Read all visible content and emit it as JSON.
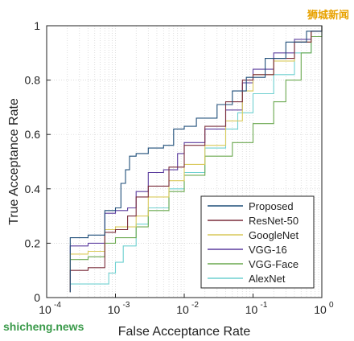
{
  "watermark_top": "狮城新闻",
  "watermark_bottom": "shicheng.news",
  "colors": {
    "Proposed": "#1f4e79",
    "ResNet-50": "#7a2c3a",
    "GoogleNet": "#d9c95a",
    "VGG-16": "#5b3c9e",
    "VGG-Face": "#6aa84f",
    "AlexNet": "#6fd0d0"
  },
  "chart_data": {
    "type": "line",
    "xlabel": "False Acceptance Rate",
    "ylabel": "True Acceptance Rate",
    "xscale": "log",
    "xlim": [
      0.0001,
      1
    ],
    "ylim": [
      0,
      1
    ],
    "x_ticks": [
      0.0001,
      0.001,
      0.01,
      0.1,
      1
    ],
    "x_tick_labels": [
      "10",
      "10",
      "10",
      "10",
      "10"
    ],
    "x_tick_exponents": [
      "-4",
      "-3",
      "-2",
      "-1",
      "0"
    ],
    "y_ticks": [
      0,
      0.2,
      0.4,
      0.6,
      0.8,
      1
    ],
    "y_tick_labels": [
      "0",
      "0.2",
      "0.4",
      "0.6",
      "0.8",
      "1"
    ],
    "grid": true,
    "legend_position": "bottom-right",
    "series": [
      {
        "name": "Proposed",
        "points": [
          [
            0.00022,
            0.02
          ],
          [
            0.00022,
            0.22
          ],
          [
            0.0004,
            0.23
          ],
          [
            0.0007,
            0.24
          ],
          [
            0.0007,
            0.32
          ],
          [
            0.001,
            0.33
          ],
          [
            0.0012,
            0.42
          ],
          [
            0.0014,
            0.47
          ],
          [
            0.0016,
            0.52
          ],
          [
            0.002,
            0.53
          ],
          [
            0.003,
            0.55
          ],
          [
            0.005,
            0.56
          ],
          [
            0.007,
            0.62
          ],
          [
            0.01,
            0.63
          ],
          [
            0.015,
            0.66
          ],
          [
            0.03,
            0.71
          ],
          [
            0.05,
            0.76
          ],
          [
            0.08,
            0.81
          ],
          [
            0.15,
            0.88
          ],
          [
            0.3,
            0.94
          ],
          [
            0.6,
            0.98
          ],
          [
            1,
            1
          ]
        ]
      },
      {
        "name": "ResNet-50",
        "points": [
          [
            0.00022,
            0.02
          ],
          [
            0.00022,
            0.1
          ],
          [
            0.0004,
            0.11
          ],
          [
            0.0007,
            0.13
          ],
          [
            0.0007,
            0.24
          ],
          [
            0.001,
            0.25
          ],
          [
            0.0015,
            0.3
          ],
          [
            0.002,
            0.37
          ],
          [
            0.003,
            0.41
          ],
          [
            0.006,
            0.48
          ],
          [
            0.01,
            0.56
          ],
          [
            0.02,
            0.63
          ],
          [
            0.04,
            0.72
          ],
          [
            0.07,
            0.8
          ],
          [
            0.1,
            0.82
          ],
          [
            0.2,
            0.88
          ],
          [
            0.4,
            0.94
          ],
          [
            0.7,
            0.98
          ],
          [
            1,
            1
          ]
        ]
      },
      {
        "name": "GoogleNet",
        "points": [
          [
            0.00022,
            0.02
          ],
          [
            0.00022,
            0.16
          ],
          [
            0.0004,
            0.17
          ],
          [
            0.0007,
            0.19
          ],
          [
            0.0007,
            0.25
          ],
          [
            0.001,
            0.26
          ],
          [
            0.002,
            0.3
          ],
          [
            0.003,
            0.37
          ],
          [
            0.006,
            0.43
          ],
          [
            0.01,
            0.49
          ],
          [
            0.02,
            0.56
          ],
          [
            0.04,
            0.65
          ],
          [
            0.07,
            0.76
          ],
          [
            0.1,
            0.82
          ],
          [
            0.2,
            0.87
          ],
          [
            0.4,
            0.94
          ],
          [
            0.7,
            0.98
          ],
          [
            1,
            1
          ]
        ]
      },
      {
        "name": "VGG-16",
        "points": [
          [
            0.00022,
            0.02
          ],
          [
            0.00022,
            0.19
          ],
          [
            0.0004,
            0.2
          ],
          [
            0.0007,
            0.22
          ],
          [
            0.0007,
            0.31
          ],
          [
            0.001,
            0.32
          ],
          [
            0.0015,
            0.33
          ],
          [
            0.002,
            0.39
          ],
          [
            0.003,
            0.46
          ],
          [
            0.005,
            0.47
          ],
          [
            0.008,
            0.53
          ],
          [
            0.01,
            0.57
          ],
          [
            0.02,
            0.62
          ],
          [
            0.04,
            0.69
          ],
          [
            0.07,
            0.79
          ],
          [
            0.1,
            0.84
          ],
          [
            0.2,
            0.9
          ],
          [
            0.4,
            0.95
          ],
          [
            0.7,
            0.98
          ],
          [
            1,
            1
          ]
        ]
      },
      {
        "name": "VGG-Face",
        "points": [
          [
            0.00022,
            0.02
          ],
          [
            0.00022,
            0.14
          ],
          [
            0.0004,
            0.15
          ],
          [
            0.0007,
            0.17
          ],
          [
            0.0007,
            0.2
          ],
          [
            0.001,
            0.22
          ],
          [
            0.002,
            0.26
          ],
          [
            0.003,
            0.32
          ],
          [
            0.006,
            0.39
          ],
          [
            0.01,
            0.45
          ],
          [
            0.02,
            0.52
          ],
          [
            0.05,
            0.57
          ],
          [
            0.1,
            0.64
          ],
          [
            0.2,
            0.72
          ],
          [
            0.3,
            0.8
          ],
          [
            0.5,
            0.9
          ],
          [
            0.7,
            0.96
          ],
          [
            1,
            1
          ]
        ]
      },
      {
        "name": "AlexNet",
        "points": [
          [
            0.00022,
            0.02
          ],
          [
            0.00022,
            0.05
          ],
          [
            0.0005,
            0.05
          ],
          [
            0.0008,
            0.09
          ],
          [
            0.001,
            0.13
          ],
          [
            0.0013,
            0.19
          ],
          [
            0.002,
            0.27
          ],
          [
            0.003,
            0.33
          ],
          [
            0.006,
            0.4
          ],
          [
            0.01,
            0.46
          ],
          [
            0.02,
            0.55
          ],
          [
            0.04,
            0.62
          ],
          [
            0.06,
            0.68
          ],
          [
            0.1,
            0.75
          ],
          [
            0.2,
            0.82
          ],
          [
            0.4,
            0.9
          ],
          [
            0.7,
            0.96
          ],
          [
            1,
            1
          ]
        ]
      }
    ]
  }
}
